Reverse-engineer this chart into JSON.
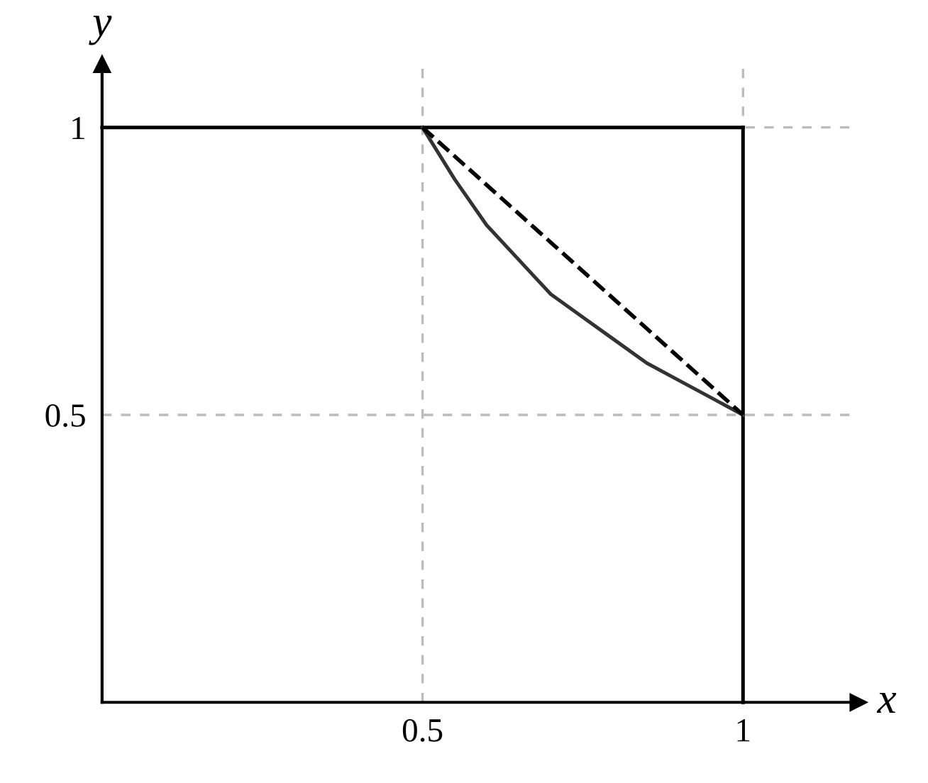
{
  "chart_data": {
    "type": "line",
    "xlabel": "x",
    "ylabel": "y",
    "xlim": [
      0,
      1.18
    ],
    "ylim": [
      0,
      1.11
    ],
    "xticks": [
      0.5,
      1
    ],
    "yticks": [
      0.5,
      1
    ],
    "grid": true,
    "legend": false,
    "marker": "none",
    "series": [
      {
        "color": "#000000",
        "x": [
          0,
          1
        ],
        "values": [
          1,
          1
        ],
        "line_style": "solid"
      },
      {
        "color": "#000000",
        "x": [
          1,
          1
        ],
        "values": [
          0,
          1
        ],
        "line_style": "solid"
      },
      {
        "color": "#333333",
        "x": [
          0.5,
          0.55,
          0.6,
          0.65,
          0.7,
          0.75,
          0.8,
          0.85,
          0.9,
          0.95,
          1
        ],
        "values": [
          1,
          0.91,
          0.83,
          0.77,
          0.71,
          0.67,
          0.63,
          0.59,
          0.56,
          0.53,
          0.5
        ],
        "line_style": "solid"
      },
      {
        "color": "#000000",
        "x": [
          0.5,
          1
        ],
        "values": [
          1,
          0.5
        ],
        "line_style": "dashed"
      }
    ]
  }
}
